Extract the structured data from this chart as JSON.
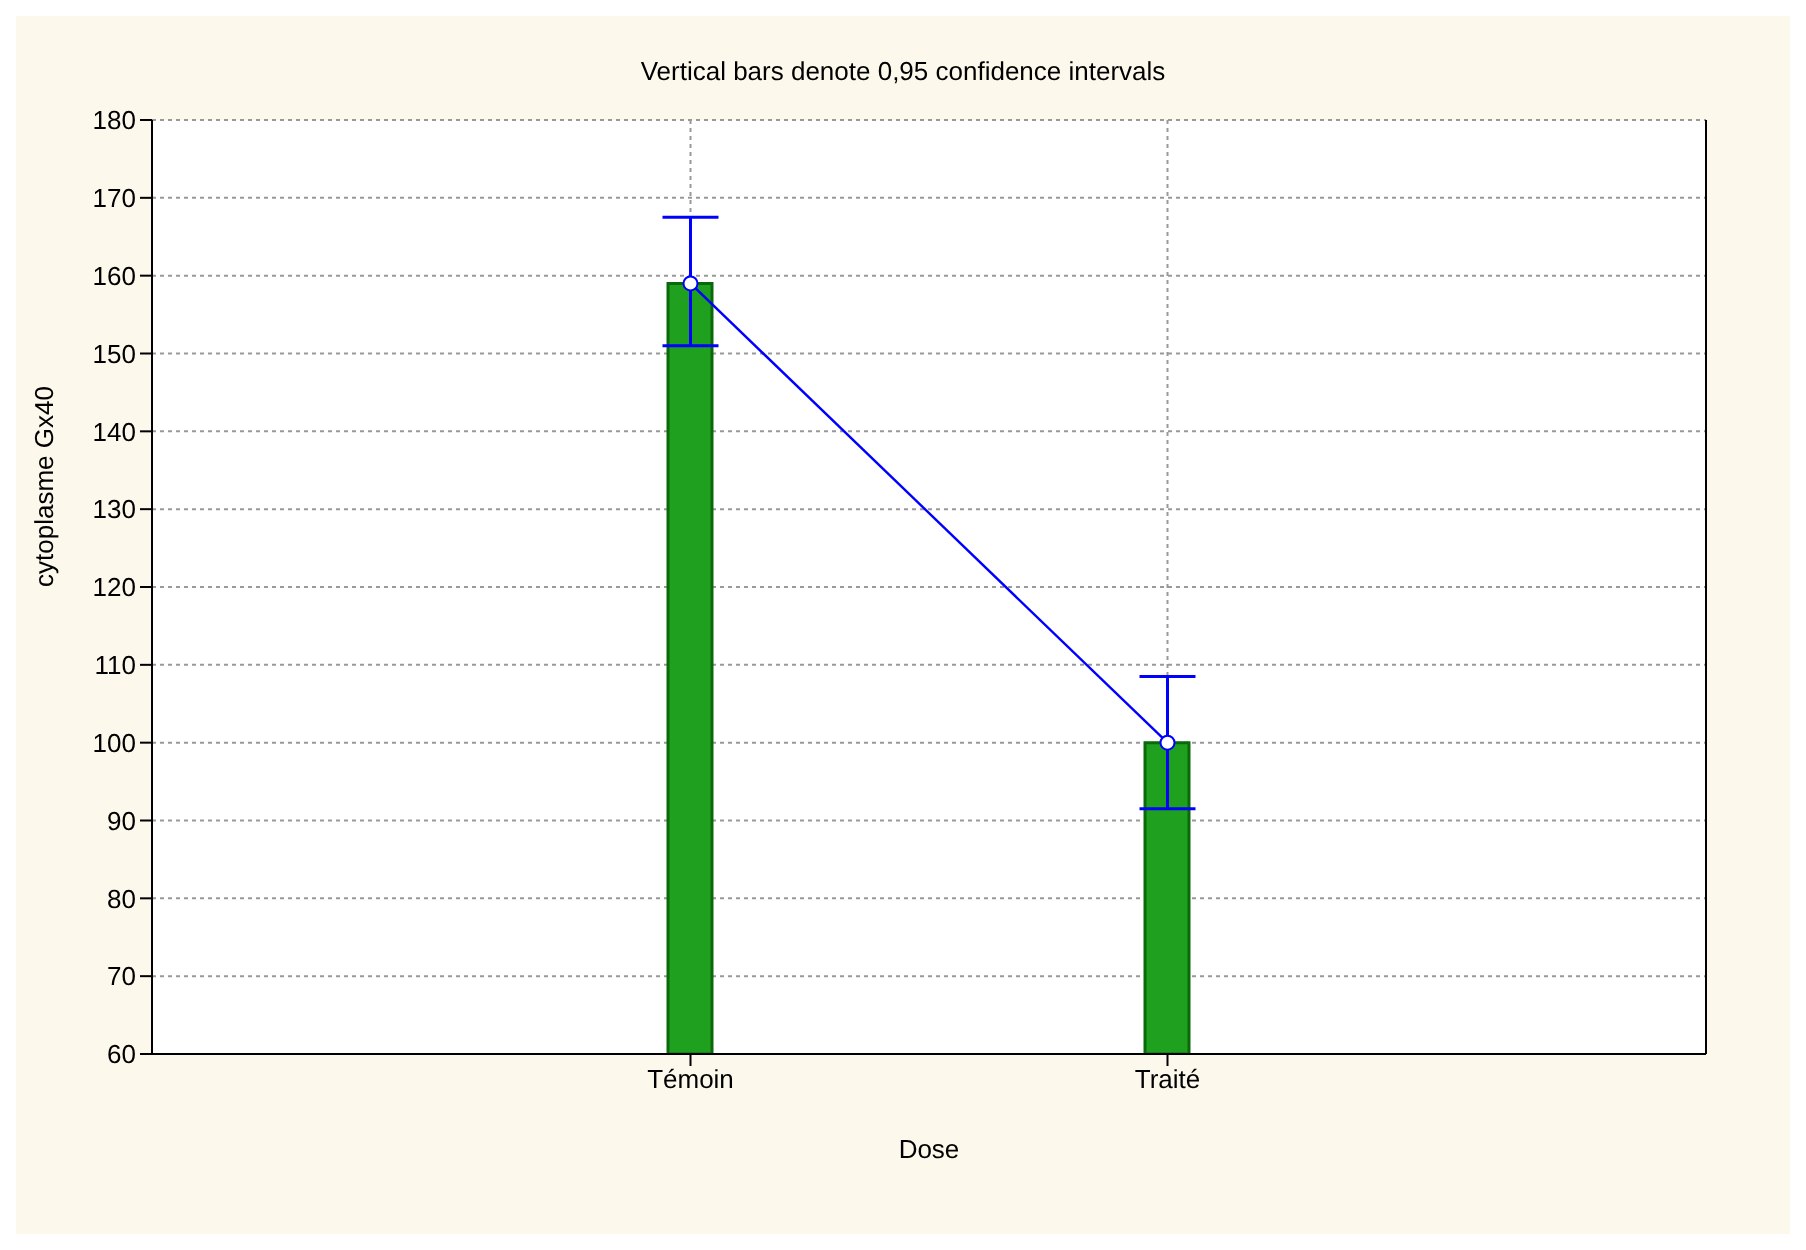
{
  "chart_data": {
    "type": "bar",
    "title": "Vertical bars denote 0,95 confidence intervals",
    "xlabel": "Dose",
    "ylabel": "cytoplasme Gx40",
    "categories": [
      "Témoin",
      "Traité"
    ],
    "series": [
      {
        "color": "#1fa01f",
        "values": [
          159,
          100
        ]
      },
      {
        "type": "line",
        "color": "#0000ff",
        "values": [
          159,
          100
        ],
        "errors": [
          [
            151,
            167.5
          ],
          [
            91.5,
            108.5
          ]
        ],
        "marker": "circle"
      }
    ],
    "ylim": [
      60,
      180
    ],
    "yticks": [
      60,
      70,
      80,
      90,
      100,
      110,
      120,
      130,
      140,
      150,
      160,
      170,
      180
    ],
    "grid": true
  }
}
